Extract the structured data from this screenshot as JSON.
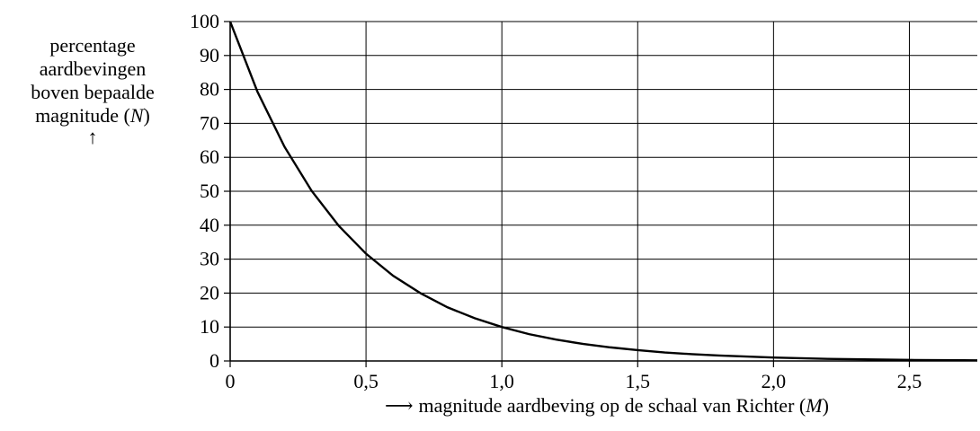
{
  "chart_data": {
    "type": "line",
    "ylabel_lines": [
      "percentage",
      "aardbevingen",
      "boven bepaalde"
    ],
    "ylabel_last_line": "magnitude (",
    "ylabel_var": "N",
    "ylabel_close": ")",
    "xlabel": "magnitude aardbeving op de schaal van Richter (",
    "xlabel_var": "M",
    "xlabel_close": ")",
    "xlim": [
      0,
      2.75
    ],
    "ylim": [
      0,
      100
    ],
    "x_ticks": [
      0,
      0.5,
      1.0,
      1.5,
      2.0,
      2.5
    ],
    "x_tick_labels": [
      "0",
      "0,5",
      "1,0",
      "1,5",
      "2,0",
      "2,5"
    ],
    "y_ticks": [
      0,
      10,
      20,
      30,
      40,
      50,
      60,
      70,
      80,
      90,
      100
    ],
    "y_tick_labels": [
      "0",
      "10",
      "20",
      "30",
      "40",
      "50",
      "60",
      "70",
      "80",
      "90",
      "100"
    ],
    "grid": true,
    "series": [
      {
        "x": [
          0,
          0.1,
          0.2,
          0.3,
          0.4,
          0.5,
          0.6,
          0.7,
          0.8,
          0.9,
          1.0,
          1.1,
          1.2,
          1.3,
          1.4,
          1.5,
          1.6,
          1.7,
          1.8,
          1.9,
          2.0,
          2.1,
          2.2,
          2.3,
          2.4,
          2.5,
          2.6,
          2.7,
          2.75
        ],
        "y": [
          100,
          79.4,
          63.1,
          50.1,
          39.8,
          31.6,
          25.1,
          20.0,
          15.8,
          12.6,
          10.0,
          7.9,
          6.3,
          5.0,
          4.0,
          3.2,
          2.5,
          2.0,
          1.6,
          1.3,
          1.0,
          0.8,
          0.6,
          0.5,
          0.4,
          0.3,
          0.25,
          0.2,
          0.18
        ]
      }
    ]
  },
  "colors": {
    "line": "#000000",
    "grid": "#000000",
    "background": "#ffffff"
  }
}
